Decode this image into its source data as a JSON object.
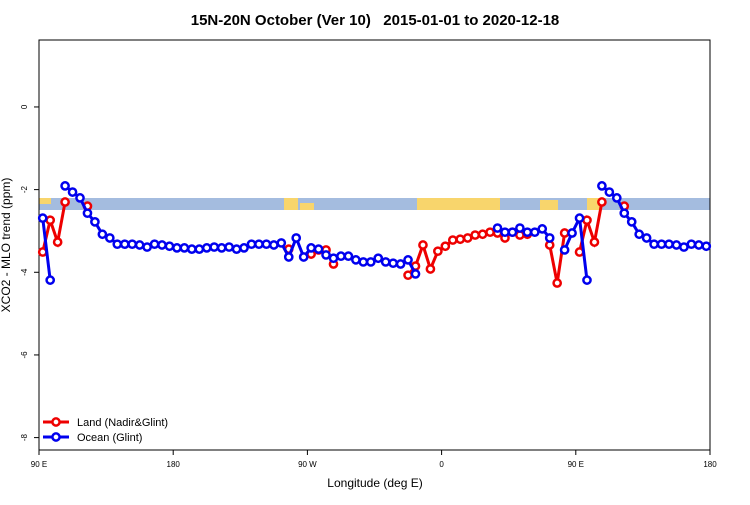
{
  "chart_data": {
    "type": "line",
    "title": "15N-20N October (Ver 10)   2015-01-01 to 2020-12-18",
    "x_label": "Longitude (deg E)",
    "y_label": "XCO2 - MLO trend (ppm)",
    "xlim": [
      90,
      540
    ],
    "ylim": [
      -8.3,
      1.62
    ],
    "xticks": [
      {
        "value": 90,
        "label": "90 E"
      },
      {
        "value": 180,
        "label": "180"
      },
      {
        "value": 270,
        "label": "90 W"
      },
      {
        "value": 360,
        "label": "0"
      },
      {
        "value": 450,
        "label": "90 E"
      },
      {
        "value": 540,
        "label": "180"
      }
    ],
    "yticks": [
      -8,
      -6,
      -4,
      -2,
      0
    ],
    "legend": "bottom-left",
    "x": [
      92.5,
      97.5,
      102.5,
      107.5,
      112.5,
      117.5,
      122.5,
      127.5,
      132.5,
      137.5,
      142.5,
      147.5,
      152.5,
      157.5,
      162.5,
      167.5,
      172.5,
      177.5,
      182.5,
      187.5,
      192.5,
      197.5,
      202.5,
      207.5,
      212.5,
      217.5,
      222.5,
      227.5,
      232.5,
      237.5,
      242.5,
      247.5,
      252.5,
      257.5,
      262.5,
      267.5,
      272.5,
      277.5,
      282.5,
      287.5,
      292.5,
      297.5,
      302.5,
      307.5,
      312.5,
      317.5,
      322.5,
      327.5,
      332.5,
      337.5,
      342.5,
      347.5,
      352.5,
      357.5,
      362.5,
      367.5,
      372.5,
      377.5,
      382.5,
      387.5,
      392.5,
      397.5,
      402.5,
      407.5,
      412.5,
      417.5,
      422.5,
      427.5,
      432.5,
      437.5,
      442.5,
      447.5,
      452.5,
      457.5,
      462.5,
      467.5,
      472.5,
      477.5,
      482.5,
      487.5,
      492.5,
      497.5,
      502.5,
      507.5,
      512.5,
      517.5,
      522.5,
      527.5,
      532.5,
      537.5
    ],
    "series": [
      {
        "name": "Land (Nadir&Glint)",
        "color": "#ee0000",
        "values": [
          -3.51,
          -2.74,
          -3.27,
          -2.3,
          null,
          null,
          -2.4,
          null,
          null,
          null,
          null,
          null,
          null,
          null,
          null,
          null,
          null,
          null,
          null,
          null,
          null,
          null,
          null,
          null,
          null,
          null,
          null,
          null,
          null,
          null,
          null,
          null,
          null,
          -3.44,
          null,
          null,
          -3.56,
          -3.46,
          -3.46,
          -3.8,
          null,
          null,
          null,
          null,
          null,
          null,
          null,
          null,
          null,
          -4.07,
          -3.85,
          -3.34,
          -3.92,
          -3.49,
          -3.37,
          -3.22,
          -3.2,
          -3.17,
          -3.1,
          -3.08,
          -3.03,
          -3.05,
          -3.17,
          -3.03,
          -3.1,
          -3.08,
          null,
          null,
          -3.34,
          -4.26,
          -3.05,
          null,
          -3.51,
          -2.74,
          -3.27,
          -2.3,
          null,
          null,
          -2.4,
          null,
          null,
          null,
          null,
          null,
          null,
          null,
          null,
          null,
          null,
          null
        ]
      },
      {
        "name": "Ocean (Glint)",
        "color": "#0000ee",
        "values": [
          -2.69,
          -4.19,
          null,
          -1.91,
          -2.06,
          -2.2,
          -2.57,
          -2.78,
          -3.08,
          -3.17,
          -3.32,
          -3.32,
          -3.32,
          -3.34,
          -3.39,
          -3.32,
          -3.34,
          -3.37,
          -3.41,
          -3.41,
          -3.44,
          -3.44,
          -3.41,
          -3.39,
          -3.41,
          -3.39,
          -3.44,
          -3.41,
          -3.32,
          -3.32,
          -3.32,
          -3.34,
          -3.29,
          -3.63,
          -3.17,
          -3.63,
          -3.41,
          -3.44,
          -3.58,
          -3.66,
          -3.61,
          -3.61,
          -3.7,
          -3.75,
          -3.75,
          -3.66,
          -3.75,
          -3.78,
          -3.8,
          -3.7,
          -4.04,
          null,
          null,
          null,
          null,
          null,
          null,
          null,
          null,
          null,
          null,
          -2.93,
          -3.03,
          -3.03,
          -2.93,
          -3.03,
          -3.03,
          -2.95,
          -3.17,
          null,
          -3.46,
          -3.05,
          -2.69,
          -4.19,
          null,
          -1.91,
          -2.06,
          -2.2,
          -2.57,
          -2.78,
          -3.08,
          -3.17,
          -3.32,
          -3.32,
          -3.32,
          -3.34,
          -3.39,
          -3.32,
          -3.34,
          -3.37
        ]
      }
    ]
  }
}
